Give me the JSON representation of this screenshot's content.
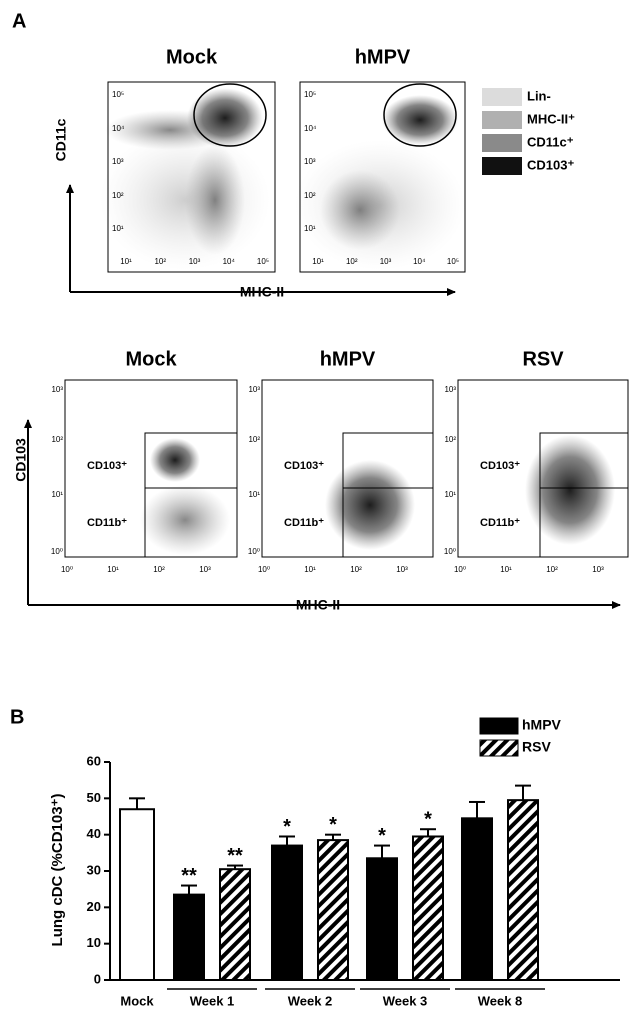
{
  "panel_a": {
    "label": "A",
    "top": {
      "titles": [
        "Mock",
        "hMPV"
      ],
      "y_axis": "CD11c",
      "x_axis": "MHC-II",
      "ticks": [
        "10¹",
        "10²",
        "10³",
        "10⁴",
        "10⁵"
      ],
      "legend": [
        "Lin-",
        "MHC-II⁺",
        "CD11c⁺",
        "CD103⁺"
      ],
      "legend_colors": [
        "#dcdcdc",
        "#b0b0b0",
        "#8a8a8a",
        "#111111"
      ]
    },
    "bottom": {
      "titles": [
        "Mock",
        "hMPV",
        "RSV"
      ],
      "y_axis": "CD103",
      "x_axis": "MHC-II",
      "ticks": [
        "10⁰",
        "10¹",
        "10²",
        "10³"
      ],
      "gates": [
        "CD103⁺",
        "CD11b⁺"
      ]
    }
  },
  "panel_b_label": "B",
  "chart_data": {
    "type": "bar",
    "ylabel": "Lung cDC (%CD103⁺)",
    "categories": [
      "Mock",
      "Week 1",
      "Week 2",
      "Week 3",
      "Week 8"
    ],
    "ylim": [
      0,
      60
    ],
    "yticks": [
      0,
      10,
      20,
      30,
      40,
      50,
      60
    ],
    "control": {
      "color": "#ffffff",
      "values": [
        47,
        null,
        null,
        null,
        null
      ],
      "errors": [
        3,
        null,
        null,
        null,
        null
      ]
    },
    "series": [
      {
        "name": "hMPV",
        "color": "#000000",
        "pattern": "solid",
        "values": [
          null,
          23.5,
          37,
          33.5,
          44.5
        ],
        "errors": [
          null,
          2.5,
          2.5,
          3.5,
          4.5
        ],
        "annotations": [
          null,
          "**",
          "*",
          "*",
          null
        ]
      },
      {
        "name": "RSV",
        "color": "#000000",
        "pattern": "hatch",
        "values": [
          null,
          30.5,
          38.5,
          39.5,
          49.5
        ],
        "errors": [
          null,
          1,
          1.5,
          2,
          4
        ],
        "annotations": [
          null,
          "**",
          "*",
          "*",
          null
        ]
      }
    ]
  }
}
